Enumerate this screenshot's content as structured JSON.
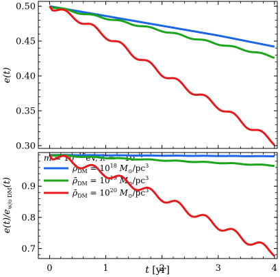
{
  "chart_data": [
    {
      "type": "line",
      "panel": "top",
      "ylabel": "e(t)",
      "xlabel": "",
      "xlim": [
        -0.2,
        4.05
      ],
      "ylim": [
        0.296,
        0.507
      ],
      "xticks": [
        0,
        1,
        2,
        3,
        4
      ],
      "xticklabels": [
        "",
        "",
        "",
        "",
        ""
      ],
      "yticks": [
        0.3,
        0.35,
        0.4,
        0.45,
        0.5
      ],
      "yticklabels": [
        "0.30",
        "0.35",
        "0.40",
        "0.45",
        "0.50"
      ],
      "legend": {
        "placement": "lower-left",
        "header": "m = 10^-17 eV, λ̂ = -10^-4",
        "entries": [
          "ρ̄DM = 10^18 M⊙/pc³",
          "ρ̄DM = 10^19 M⊙/pc³",
          "ρ̄DM = 10^20 M⊙/pc³"
        ]
      },
      "grid": false,
      "series": [
        {
          "name": "ρ̄DM = 10^18 M⊙/pc³",
          "color": "#1a66e6",
          "x": [
            0,
            0.5,
            1,
            1.5,
            2,
            2.5,
            3,
            3.5,
            4
          ],
          "y": [
            0.5,
            0.493,
            0.486,
            0.479,
            0.472,
            0.465,
            0.458,
            0.45,
            0.442
          ]
        },
        {
          "name": "ρ̄DM = 10^19 M⊙/pc³",
          "color": "#1aa51a",
          "x": [
            0,
            0.5,
            1,
            1.5,
            2,
            2.5,
            3,
            3.5,
            4
          ],
          "y": [
            0.5,
            0.491,
            0.483,
            0.474,
            0.465,
            0.455,
            0.446,
            0.437,
            0.427
          ]
        },
        {
          "name": "ρ̄DM = 10^20 M⊙/pc³",
          "color": "#e61a1a",
          "x": [
            0,
            0.5,
            1,
            1.5,
            2,
            2.5,
            3,
            3.5,
            4
          ],
          "y": [
            0.5,
            0.482,
            0.458,
            0.431,
            0.404,
            0.38,
            0.357,
            0.33,
            0.305
          ]
        }
      ]
    },
    {
      "type": "line",
      "panel": "bottom",
      "ylabel": "e(t)/e_w/o DM(t)",
      "xlabel": "t [yr]",
      "xlim": [
        -0.2,
        4.05
      ],
      "ylim": [
        0.668,
        1.008
      ],
      "xticks": [
        0,
        1,
        2,
        3,
        4
      ],
      "xticklabels": [
        "0",
        "1",
        "2",
        "3",
        "4"
      ],
      "yticks": [
        0.7,
        0.8,
        0.9
      ],
      "yticklabels": [
        "0.7",
        "0.8",
        "0.9"
      ],
      "grid": false,
      "series": [
        {
          "name": "ρ̄DM = 10^18 M⊙/pc³",
          "color": "#1a66e6",
          "x": [
            0,
            1,
            2,
            3,
            4
          ],
          "y": [
            1.0,
            0.999,
            0.998,
            0.997,
            0.996
          ]
        },
        {
          "name": "ρ̄DM = 10^19 M⊙/pc³",
          "color": "#1aa51a",
          "x": [
            0,
            1,
            2,
            3,
            4
          ],
          "y": [
            1.0,
            0.991,
            0.983,
            0.975,
            0.966
          ]
        },
        {
          "name": "ρ̄DM = 10^20 M⊙/pc³",
          "color": "#e61a1a",
          "x": [
            0,
            0.5,
            1,
            1.5,
            2,
            2.5,
            3,
            3.5,
            4
          ],
          "y": [
            1.0,
            0.972,
            0.941,
            0.903,
            0.864,
            0.818,
            0.774,
            0.728,
            0.688
          ]
        }
      ]
    }
  ]
}
